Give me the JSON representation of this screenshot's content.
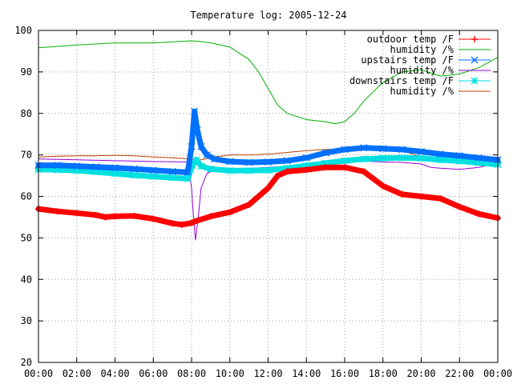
{
  "chart_data": {
    "type": "line",
    "title": "Temperature log: 2005-12-24",
    "xlabel": "",
    "ylabel": "",
    "xlim": [
      0,
      24
    ],
    "ylim": [
      20,
      100
    ],
    "grid": true,
    "legend_position": "top-right",
    "x_tick_labels": [
      "00:00",
      "02:00",
      "04:00",
      "06:00",
      "08:00",
      "10:00",
      "12:00",
      "14:00",
      "16:00",
      "18:00",
      "20:00",
      "22:00",
      "00:00"
    ],
    "y_tick_labels": [
      "20",
      "30",
      "40",
      "50",
      "60",
      "70",
      "80",
      "90",
      "100"
    ],
    "series": [
      {
        "name": "outdoor temp /F",
        "color": "#ff0000",
        "marker": "plus",
        "x": [
          0,
          1,
          2,
          3,
          3.5,
          4,
          5,
          6,
          7,
          7.5,
          8,
          8.2,
          9,
          10,
          11,
          12,
          12.5,
          13,
          14,
          15,
          16,
          17,
          18,
          19,
          20,
          21,
          22,
          23,
          24
        ],
        "y": [
          57,
          56.4,
          56,
          55.5,
          55,
          55.2,
          55.3,
          54.6,
          53.5,
          53.2,
          53.6,
          54,
          55.2,
          56.2,
          58,
          62,
          65,
          66,
          66.4,
          67,
          67,
          66,
          62.5,
          60.5,
          60,
          59.5,
          57.5,
          55.8,
          54.8
        ]
      },
      {
        "name": "humidity /%",
        "color": "#00b000",
        "marker": "none",
        "x": [
          0,
          2,
          4,
          6,
          8,
          8.5,
          9,
          10,
          11,
          11.5,
          12,
          12.5,
          13,
          14,
          15,
          15.5,
          16,
          16.5,
          17,
          18,
          19,
          20,
          21,
          22,
          23,
          24
        ],
        "y": [
          95.8,
          96.5,
          97,
          97,
          97.5,
          97.3,
          97,
          96,
          93,
          90,
          86,
          82,
          80,
          78.5,
          78,
          77.5,
          78,
          80,
          83,
          87.5,
          90,
          90.5,
          89,
          89.5,
          91,
          93.5
        ]
      },
      {
        "name": "upstairs temp /F",
        "color": "#0070ff",
        "marker": "x",
        "x": [
          0,
          1,
          2,
          3,
          4,
          5,
          6,
          7,
          7.8,
          8.0,
          8.15,
          8.3,
          8.5,
          8.8,
          9.2,
          10,
          11,
          12,
          13,
          14,
          15,
          16,
          17,
          18,
          19,
          20,
          21,
          22,
          23,
          24
        ],
        "y": [
          67.5,
          67.5,
          67.3,
          67.1,
          66.9,
          66.6,
          66.3,
          66,
          65.8,
          72,
          80.5,
          76,
          72,
          70,
          69,
          68.4,
          68.2,
          68.3,
          68.6,
          69.3,
          70.5,
          71.3,
          71.7,
          71.5,
          71.3,
          70.8,
          70.2,
          69.8,
          69.3,
          68.8
        ]
      },
      {
        "name": "humidity /%",
        "color": "#9400d3",
        "marker": "none",
        "x": [
          0,
          2,
          4,
          6,
          7.5,
          7.8,
          8.0,
          8.1,
          8.2,
          8.35,
          8.5,
          8.8,
          9.0,
          10,
          12,
          14,
          16,
          17,
          18,
          19,
          20,
          20.5,
          21,
          22,
          23,
          24
        ],
        "y": [
          69,
          68.8,
          68.6,
          68.4,
          68.3,
          68.3,
          62,
          55,
          49.5,
          55,
          62,
          65.5,
          66,
          66.5,
          67,
          67.5,
          68,
          68.5,
          68.3,
          68.2,
          67.8,
          67,
          66.8,
          66.5,
          67,
          68
        ]
      },
      {
        "name": "downstairs temp /F",
        "color": "#00e0e0",
        "marker": "star",
        "x": [
          0,
          1,
          2,
          3,
          4,
          5,
          6,
          7,
          7.8,
          8.05,
          8.25,
          8.5,
          9,
          10,
          11,
          12,
          13,
          14,
          15,
          16,
          17,
          18,
          19,
          20,
          21,
          22,
          23,
          24
        ],
        "y": [
          66.5,
          66.4,
          66.2,
          65.9,
          65.5,
          65.1,
          64.8,
          64.5,
          64.3,
          67.5,
          68.8,
          67.3,
          66.6,
          66.2,
          66.2,
          66.3,
          66.8,
          67.4,
          68,
          68.6,
          69,
          69.2,
          69.3,
          69.2,
          68.8,
          68.5,
          68.1,
          67.7
        ]
      },
      {
        "name": "humidity /%",
        "color": "#c04000",
        "marker": "none",
        "x": [
          0,
          1,
          2,
          3,
          4,
          5,
          6,
          7,
          8,
          8.5,
          9,
          10,
          11,
          12,
          13,
          14,
          15,
          16,
          17,
          18,
          19,
          20,
          21,
          22,
          23,
          24
        ],
        "y": [
          69.5,
          69.7,
          69.8,
          69.8,
          69.9,
          69.8,
          69.5,
          69.3,
          69,
          68.8,
          69.3,
          70,
          70,
          70.2,
          70.6,
          71,
          71.3,
          71.5,
          72,
          71.8,
          71,
          69.5,
          68.8,
          68.3,
          68,
          67.7
        ]
      }
    ]
  }
}
